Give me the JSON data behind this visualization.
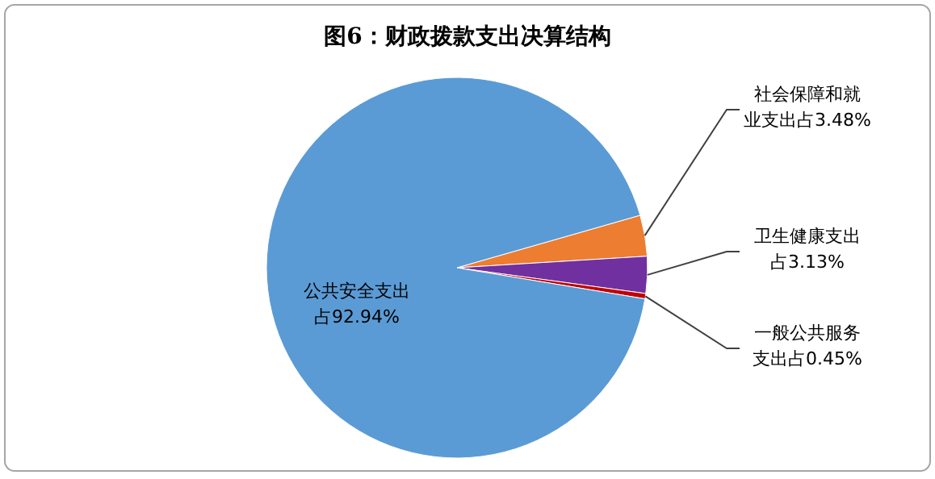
{
  "chart_data": {
    "type": "pie",
    "title": "图6：财政拨款支出决算结构",
    "categories": [
      "社会保障和就业支出",
      "卫生健康支出",
      "一般公共服务支出",
      "公共安全支出"
    ],
    "values": [
      3.48,
      3.13,
      0.45,
      92.94
    ],
    "colors": [
      "#ed7d31",
      "#7030a0",
      "#c00000",
      "#5b9bd5"
    ],
    "value_labels": [
      "占3.48%",
      "占3.13%",
      "占0.45%",
      "占92.94%"
    ]
  }
}
